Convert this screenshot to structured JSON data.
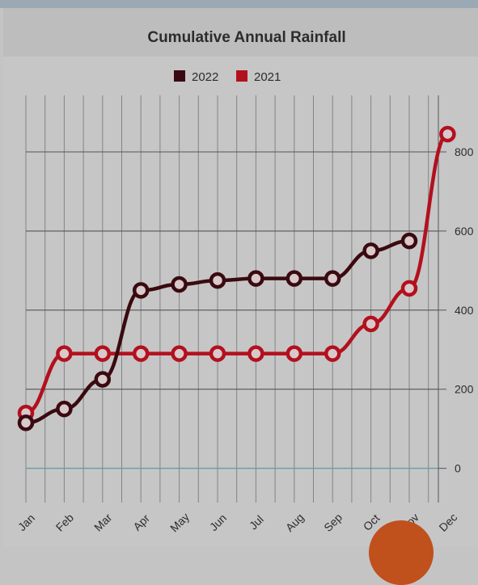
{
  "chart_data": {
    "type": "line",
    "title": "Cumulative Annual Rainfall",
    "categories": [
      "Jan",
      "Feb",
      "Mar",
      "Apr",
      "May",
      "Jun",
      "Jul",
      "Aug",
      "Sep",
      "Oct",
      "Nov",
      "Dec"
    ],
    "series": [
      {
        "name": "2022",
        "color": "#3a0a10",
        "values": [
          115,
          150,
          225,
          450,
          465,
          475,
          480,
          480,
          480,
          550,
          575,
          null
        ]
      },
      {
        "name": "2021",
        "color": "#b3101e",
        "values": [
          140,
          290,
          290,
          290,
          290,
          290,
          290,
          290,
          290,
          365,
          455,
          845
        ]
      }
    ],
    "y_ticks": [
      0,
      200,
      400,
      600,
      800
    ],
    "ylim": [
      -90,
      880
    ],
    "legend": "top-center",
    "grid": true,
    "axis_position": "right"
  }
}
